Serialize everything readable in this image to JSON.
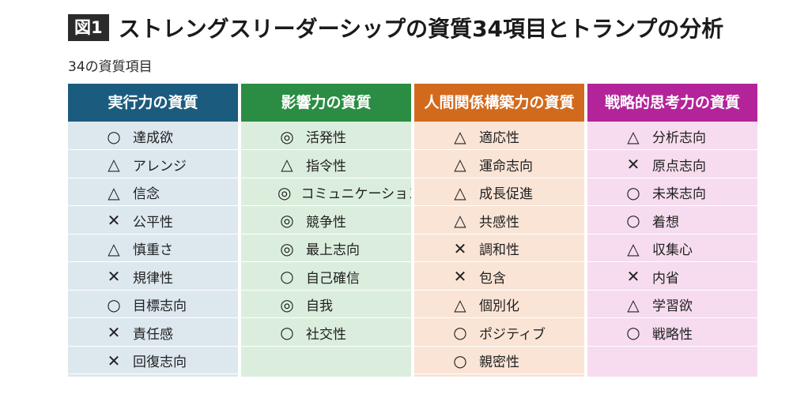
{
  "header": {
    "fig_label": "図1",
    "title": "ストレングスリーダーシップの資質34項目とトランプの分析",
    "subtitle": "34の資質項目"
  },
  "colors": {
    "col1_header": "#1b5c7e",
    "col1_body": "#dde8ee",
    "col2_header": "#2a8d43",
    "col2_body": "#dbeedd",
    "col3_header": "#d26a1d",
    "col3_body": "#f9e4d6",
    "col4_header": "#b3249a",
    "col4_body": "#f6dcee"
  },
  "columns": [
    {
      "header": "実行力の資質",
      "items": [
        {
          "mark": "○",
          "name": "達成欲"
        },
        {
          "mark": "△",
          "name": "アレンジ"
        },
        {
          "mark": "△",
          "name": "信念"
        },
        {
          "mark": "✕",
          "name": "公平性"
        },
        {
          "mark": "△",
          "name": "慎重さ"
        },
        {
          "mark": "✕",
          "name": "規律性"
        },
        {
          "mark": "○",
          "name": "目標志向"
        },
        {
          "mark": "✕",
          "name": "責任感"
        },
        {
          "mark": "✕",
          "name": "回復志向"
        }
      ]
    },
    {
      "header": "影響力の資質",
      "items": [
        {
          "mark": "◎",
          "name": "活発性"
        },
        {
          "mark": "△",
          "name": "指令性"
        },
        {
          "mark": "◎",
          "name": "コミュニケーション"
        },
        {
          "mark": "◎",
          "name": "競争性"
        },
        {
          "mark": "◎",
          "name": "最上志向"
        },
        {
          "mark": "○",
          "name": "自己確信"
        },
        {
          "mark": "◎",
          "name": "自我"
        },
        {
          "mark": "○",
          "name": "社交性"
        }
      ]
    },
    {
      "header": "人間関係構築力の資質",
      "items": [
        {
          "mark": "△",
          "name": "適応性"
        },
        {
          "mark": "△",
          "name": "運命志向"
        },
        {
          "mark": "△",
          "name": "成長促進"
        },
        {
          "mark": "△",
          "name": "共感性"
        },
        {
          "mark": "✕",
          "name": "調和性"
        },
        {
          "mark": "✕",
          "name": "包含"
        },
        {
          "mark": "△",
          "name": "個別化"
        },
        {
          "mark": "○",
          "name": "ポジティブ"
        },
        {
          "mark": "○",
          "name": "親密性"
        }
      ]
    },
    {
      "header": "戦略的思考力の資質",
      "items": [
        {
          "mark": "△",
          "name": "分析志向"
        },
        {
          "mark": "✕",
          "name": "原点志向"
        },
        {
          "mark": "○",
          "name": "未来志向"
        },
        {
          "mark": "○",
          "name": "着想"
        },
        {
          "mark": "△",
          "name": "収集心"
        },
        {
          "mark": "✕",
          "name": "内省"
        },
        {
          "mark": "△",
          "name": "学習欲"
        },
        {
          "mark": "○",
          "name": "戦略性"
        }
      ]
    }
  ]
}
